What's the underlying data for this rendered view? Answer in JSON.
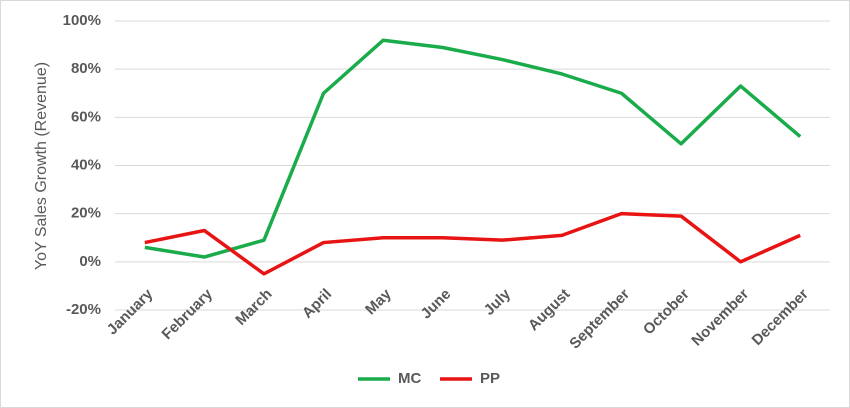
{
  "chart_data": {
    "type": "line",
    "y_label": "YoY Sales Growth (Revenue)",
    "categories": [
      "January",
      "February",
      "March",
      "April",
      "May",
      "June",
      "July",
      "August",
      "September",
      "October",
      "November",
      "December"
    ],
    "series": [
      {
        "name": "MC",
        "color": "#1aab4b",
        "values": [
          6,
          2,
          9,
          70,
          92,
          89,
          84,
          78,
          70,
          49,
          73,
          52
        ]
      },
      {
        "name": "PP",
        "color": "#e81313",
        "values": [
          8,
          13,
          -5,
          8,
          10,
          10,
          9,
          11,
          20,
          19,
          0,
          11
        ]
      }
    ],
    "ylim": [
      -20,
      100
    ],
    "yticks": [
      {
        "value": -20,
        "label": "-20%"
      },
      {
        "value": 0,
        "label": "0%"
      },
      {
        "value": 20,
        "label": "20%"
      },
      {
        "value": 40,
        "label": "40%"
      },
      {
        "value": 60,
        "label": "60%"
      },
      {
        "value": 80,
        "label": "80%"
      },
      {
        "value": 100,
        "label": "100%"
      }
    ],
    "grid": true,
    "legend": "bottom"
  }
}
